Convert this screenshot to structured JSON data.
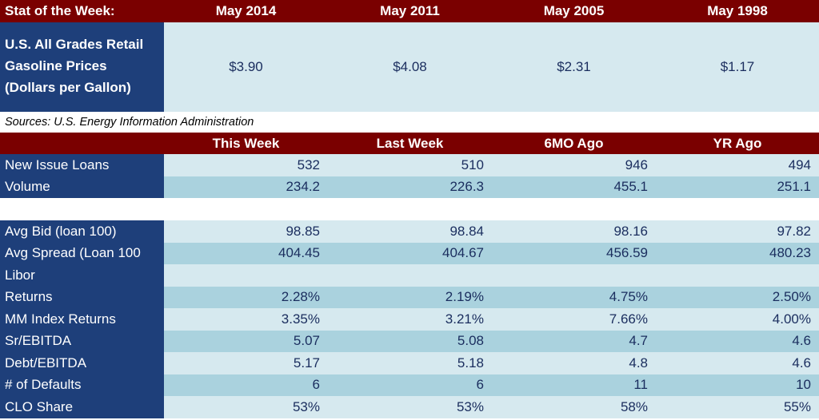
{
  "stat_table": {
    "header_label": "Stat of the Week:",
    "columns": [
      "May 2014",
      "May 2011",
      "May 2005",
      "May 1998"
    ],
    "row_label_lines": [
      "U.S. All Grades Retail",
      "Gasoline Prices",
      "(Dollars per Gallon)"
    ],
    "values": [
      "$3.90",
      "$4.08",
      "$2.31",
      "$1.17"
    ]
  },
  "sources": "Sources: U.S. Energy Information Administration",
  "loan_table": {
    "columns": [
      "This Week",
      "Last Week",
      "6MO Ago",
      "YR Ago"
    ],
    "group1": [
      {
        "label": "New Issue Loans",
        "values": [
          "532",
          "510",
          "946",
          "494"
        ]
      },
      {
        "label": "Volume",
        "values": [
          "234.2",
          "226.3",
          "455.1",
          "251.1"
        ]
      }
    ],
    "group2": [
      {
        "label": "Avg Bid (loan 100)",
        "values": [
          "98.85",
          "98.84",
          "98.16",
          "97.82"
        ]
      },
      {
        "label": "Avg Spread (Loan 100",
        "values": [
          "404.45",
          "404.67",
          "456.59",
          "480.23"
        ]
      },
      {
        "label": "Libor",
        "values": [
          "",
          "",
          "",
          ""
        ]
      },
      {
        "label": "Returns",
        "values": [
          "2.28%",
          "2.19%",
          "4.75%",
          "2.50%"
        ]
      },
      {
        "label": "MM Index Returns",
        "values": [
          "3.35%",
          "3.21%",
          "7.66%",
          "4.00%"
        ]
      },
      {
        "label": "Sr/EBITDA",
        "values": [
          "5.07",
          "5.08",
          "4.7",
          "4.6"
        ]
      },
      {
        "label": "Debt/EBITDA",
        "values": [
          "5.17",
          "5.18",
          "4.8",
          "4.6"
        ]
      },
      {
        "label": "# of Defaults",
        "values": [
          "6",
          "6",
          "11",
          "10"
        ]
      },
      {
        "label": "CLO Share",
        "values": [
          "53%",
          "53%",
          "58%",
          "55%"
        ]
      }
    ]
  }
}
